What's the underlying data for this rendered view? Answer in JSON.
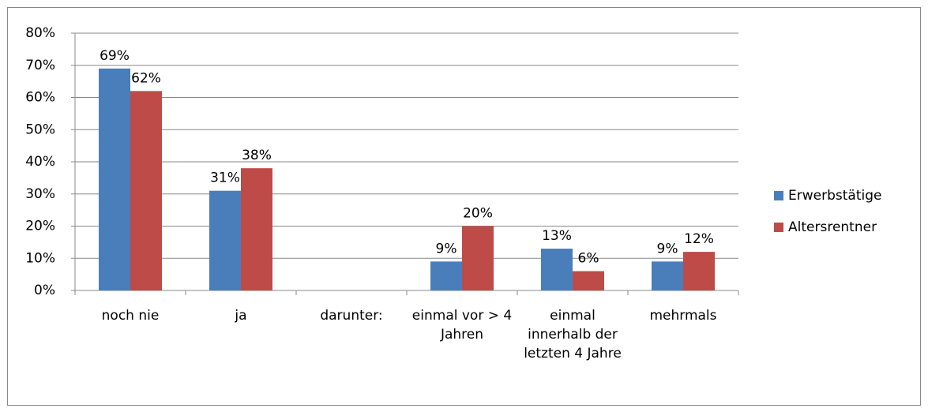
{
  "chart_data": {
    "type": "bar",
    "categories": [
      "noch nie",
      "ja",
      "darunter:",
      "einmal vor > 4 Jahren",
      "einmal innerhalb der letzten 4 Jahre",
      "mehrmals"
    ],
    "series": [
      {
        "name": "Erwerbstätige",
        "color": "#4a7ebb",
        "values": [
          69,
          31,
          null,
          9,
          13,
          9
        ],
        "value_labels": [
          "69%",
          "31%",
          null,
          "9%",
          "13%",
          "9%"
        ]
      },
      {
        "name": "Altersrentner",
        "color": "#be4b48",
        "values": [
          62,
          38,
          null,
          20,
          6,
          12
        ],
        "value_labels": [
          "62%",
          "38%",
          null,
          "20%",
          "6%",
          "12%"
        ]
      }
    ],
    "ylim": [
      0,
      80
    ],
    "yticks": [
      {
        "value": 0,
        "label": "0%"
      },
      {
        "value": 10,
        "label": "10%"
      },
      {
        "value": 20,
        "label": "20%"
      },
      {
        "value": 30,
        "label": "30%"
      },
      {
        "value": 40,
        "label": "40%"
      },
      {
        "value": 50,
        "label": "50%"
      },
      {
        "value": 60,
        "label": "60%"
      },
      {
        "value": 70,
        "label": "70%"
      },
      {
        "value": 80,
        "label": "80%"
      }
    ],
    "grid": true,
    "legend": "right"
  }
}
